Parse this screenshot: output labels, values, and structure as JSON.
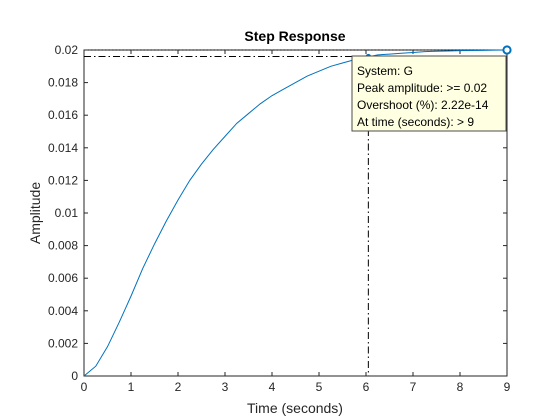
{
  "chart_data": {
    "type": "line",
    "title": "Step Response",
    "xlabel": "Time (seconds)",
    "ylabel": "Amplitude",
    "xlim": [
      0,
      9
    ],
    "ylim": [
      0,
      0.02
    ],
    "xticks": [
      0,
      1,
      2,
      3,
      4,
      5,
      6,
      7,
      8,
      9
    ],
    "yticks": [
      0,
      0.002,
      0.004,
      0.006,
      0.008,
      0.01,
      0.012,
      0.014,
      0.016,
      0.018,
      0.02
    ],
    "xtick_labels": [
      "0",
      "1",
      "2",
      "3",
      "4",
      "5",
      "6",
      "7",
      "8",
      "9"
    ],
    "ytick_labels": [
      "0",
      "0.002",
      "0.004",
      "0.006",
      "0.008",
      "0.01",
      "0.012",
      "0.014",
      "0.016",
      "0.018",
      "0.02"
    ],
    "grid": false,
    "series": [
      {
        "color": "#0072BD",
        "x": [
          0,
          0.25,
          0.5,
          0.75,
          1,
          1.25,
          1.5,
          1.75,
          2,
          2.25,
          2.5,
          2.75,
          3,
          3.25,
          3.5,
          3.75,
          4,
          4.25,
          4.5,
          4.75,
          5,
          5.25,
          5.5,
          5.75,
          6,
          6.25,
          6.5,
          6.75,
          7,
          7.25,
          7.5,
          7.75,
          8,
          8.25,
          8.5,
          8.75,
          9
        ],
        "y": [
          0,
          0.0006,
          0.0018,
          0.0033,
          0.0049,
          0.0066,
          0.0081,
          0.0095,
          0.0108,
          0.012,
          0.013,
          0.0139,
          0.0147,
          0.0155,
          0.0161,
          0.0167,
          0.0172,
          0.0176,
          0.018,
          0.0184,
          0.0187,
          0.019,
          0.0192,
          0.0194,
          0.01955,
          0.0197,
          0.01975,
          0.0198,
          0.01985,
          0.0199,
          0.01992,
          0.01994,
          0.01996,
          0.01997,
          0.01998,
          0.01999,
          0.02
        ]
      }
    ],
    "reference_lines": {
      "final_value": 0.02,
      "settling_y": 0.0196,
      "settling_time": 6.05
    },
    "annotation": {
      "x": 9,
      "y": 0.02,
      "lines": [
        "System: G",
        "Peak amplitude: >= 0.02",
        "Overshoot (%): 2.22e-14",
        "At time (seconds): > 9"
      ],
      "background": "#FFFFE1"
    }
  }
}
